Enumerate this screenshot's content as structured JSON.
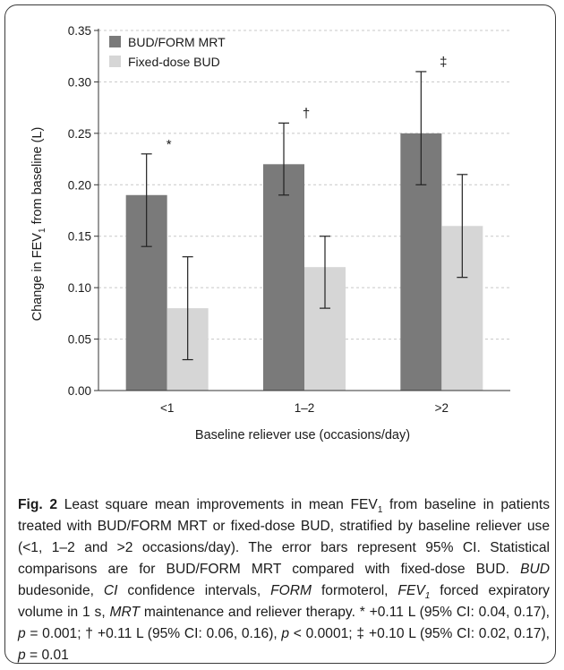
{
  "chart_data": {
    "type": "bar",
    "categories": [
      "<1",
      "1–2",
      ">2"
    ],
    "series": [
      {
        "name": "BUD/FORM MRT",
        "color": "#7a7a7a",
        "values": [
          0.19,
          0.22,
          0.25
        ],
        "ci_low": [
          0.14,
          0.19,
          0.2
        ],
        "ci_high": [
          0.23,
          0.26,
          0.31
        ]
      },
      {
        "name": "Fixed-dose BUD",
        "color": "#d6d6d6",
        "values": [
          0.08,
          0.12,
          0.16
        ],
        "ci_low": [
          0.03,
          0.08,
          0.11
        ],
        "ci_high": [
          0.13,
          0.15,
          0.21
        ]
      }
    ],
    "significance_markers": [
      "*",
      "†",
      "‡"
    ],
    "xlabel": "Baseline reliever use (occasions/day)",
    "ylabel_main": "Change in FEV",
    "ylabel_sub": "1",
    "ylabel_rest": " from baseline (L)",
    "ylim": [
      0,
      0.35
    ],
    "yticks": [
      "0.00",
      "0.05",
      "0.10",
      "0.15",
      "0.20",
      "0.25",
      "0.30",
      "0.35"
    ],
    "grid": true,
    "legend_position": "top-left"
  },
  "caption": {
    "label": "Fig. 2",
    "t1": " Least square mean improvements in mean FEV",
    "sub1": "1",
    "t2": " from baseline in patients treated with BUD/FORM MRT or fixed-dose BUD, stratified by baseline reliever use (<1, 1–2 and >2 occasions/day). The error bars represent 95% CI. Statistical comparisons are for BUD/FORM MRT compared with fixed-dose BUD. ",
    "abbr_bud": "BUD",
    "t3": " budesonide, ",
    "abbr_ci": "CI",
    "t4": " confidence intervals, ",
    "abbr_form": "FORM",
    "t5": " formoterol, ",
    "abbr_fev": "FEV",
    "abbr_fev_sub": "1",
    "t6": " forced expiratory volume in 1 s, ",
    "abbr_mrt": "MRT",
    "t7": " maintenance and reliever therapy. * +0.11 L (95% CI: 0.04, 0.17), ",
    "p1": "p",
    "t8": " = 0.001; † +0.11 L (95% CI: 0.06, 0.16), ",
    "p2": "p",
    "t9": " < 0.0001; ‡ +0.10 L (95% CI: 0.02, 0.17), ",
    "p3": "p",
    "t10": " = 0.01"
  }
}
